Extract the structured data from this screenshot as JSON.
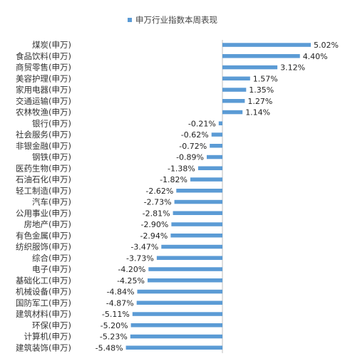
{
  "chart_data": {
    "type": "bar",
    "orientation": "horizontal",
    "legend": {
      "label": "申万行业指数本周表现",
      "position": "top"
    },
    "unit": "%",
    "color": "#5B9BD5",
    "grid": false,
    "xlim": [
      -6,
      6
    ],
    "categories": [
      "煤炭(申万)",
      "食品饮料(申万)",
      "商贸零售(申万)",
      "美容护理(申万)",
      "家用电器(申万)",
      "交通运输(申万)",
      "农林牧渔(申万)",
      "银行(申万)",
      "社会服务(申万)",
      "非银金融(申万)",
      "钢铁(申万)",
      "医药生物(申万)",
      "石油石化(申万)",
      "轻工制造(申万)",
      "汽车(申万)",
      "公用事业(申万)",
      "房地产(申万)",
      "有色金属(申万)",
      "纺织服饰(申万)",
      "综合(申万)",
      "电子(申万)",
      "基础化工(申万)",
      "机械设备(申万)",
      "国防军工(申万)",
      "建筑材料(申万)",
      "环保(申万)",
      "计算机(申万)",
      "建筑装饰(申万)"
    ],
    "values": [
      5.02,
      4.4,
      3.12,
      1.57,
      1.35,
      1.27,
      1.14,
      -0.21,
      -0.62,
      -0.72,
      -0.89,
      -1.38,
      -1.82,
      -2.62,
      -2.73,
      -2.81,
      -2.9,
      -2.94,
      -3.47,
      -3.73,
      -4.2,
      -4.25,
      -4.84,
      -4.87,
      -5.11,
      -5.2,
      -5.23,
      -5.48
    ],
    "value_labels": [
      "5.02%",
      "4.40%",
      "3.12%",
      "1.57%",
      "1.35%",
      "1.27%",
      "1.14%",
      "-0.21%",
      "-0.62%",
      "-0.72%",
      "-0.89%",
      "-1.38%",
      "-1.82%",
      "-2.62%",
      "-2.73%",
      "-2.81%",
      "-2.90%",
      "-2.94%",
      "-3.47%",
      "-3.73%",
      "-4.20%",
      "-4.25%",
      "-4.84%",
      "-4.87%",
      "-5.11%",
      "-5.20%",
      "-5.23%",
      "-5.48%"
    ]
  }
}
